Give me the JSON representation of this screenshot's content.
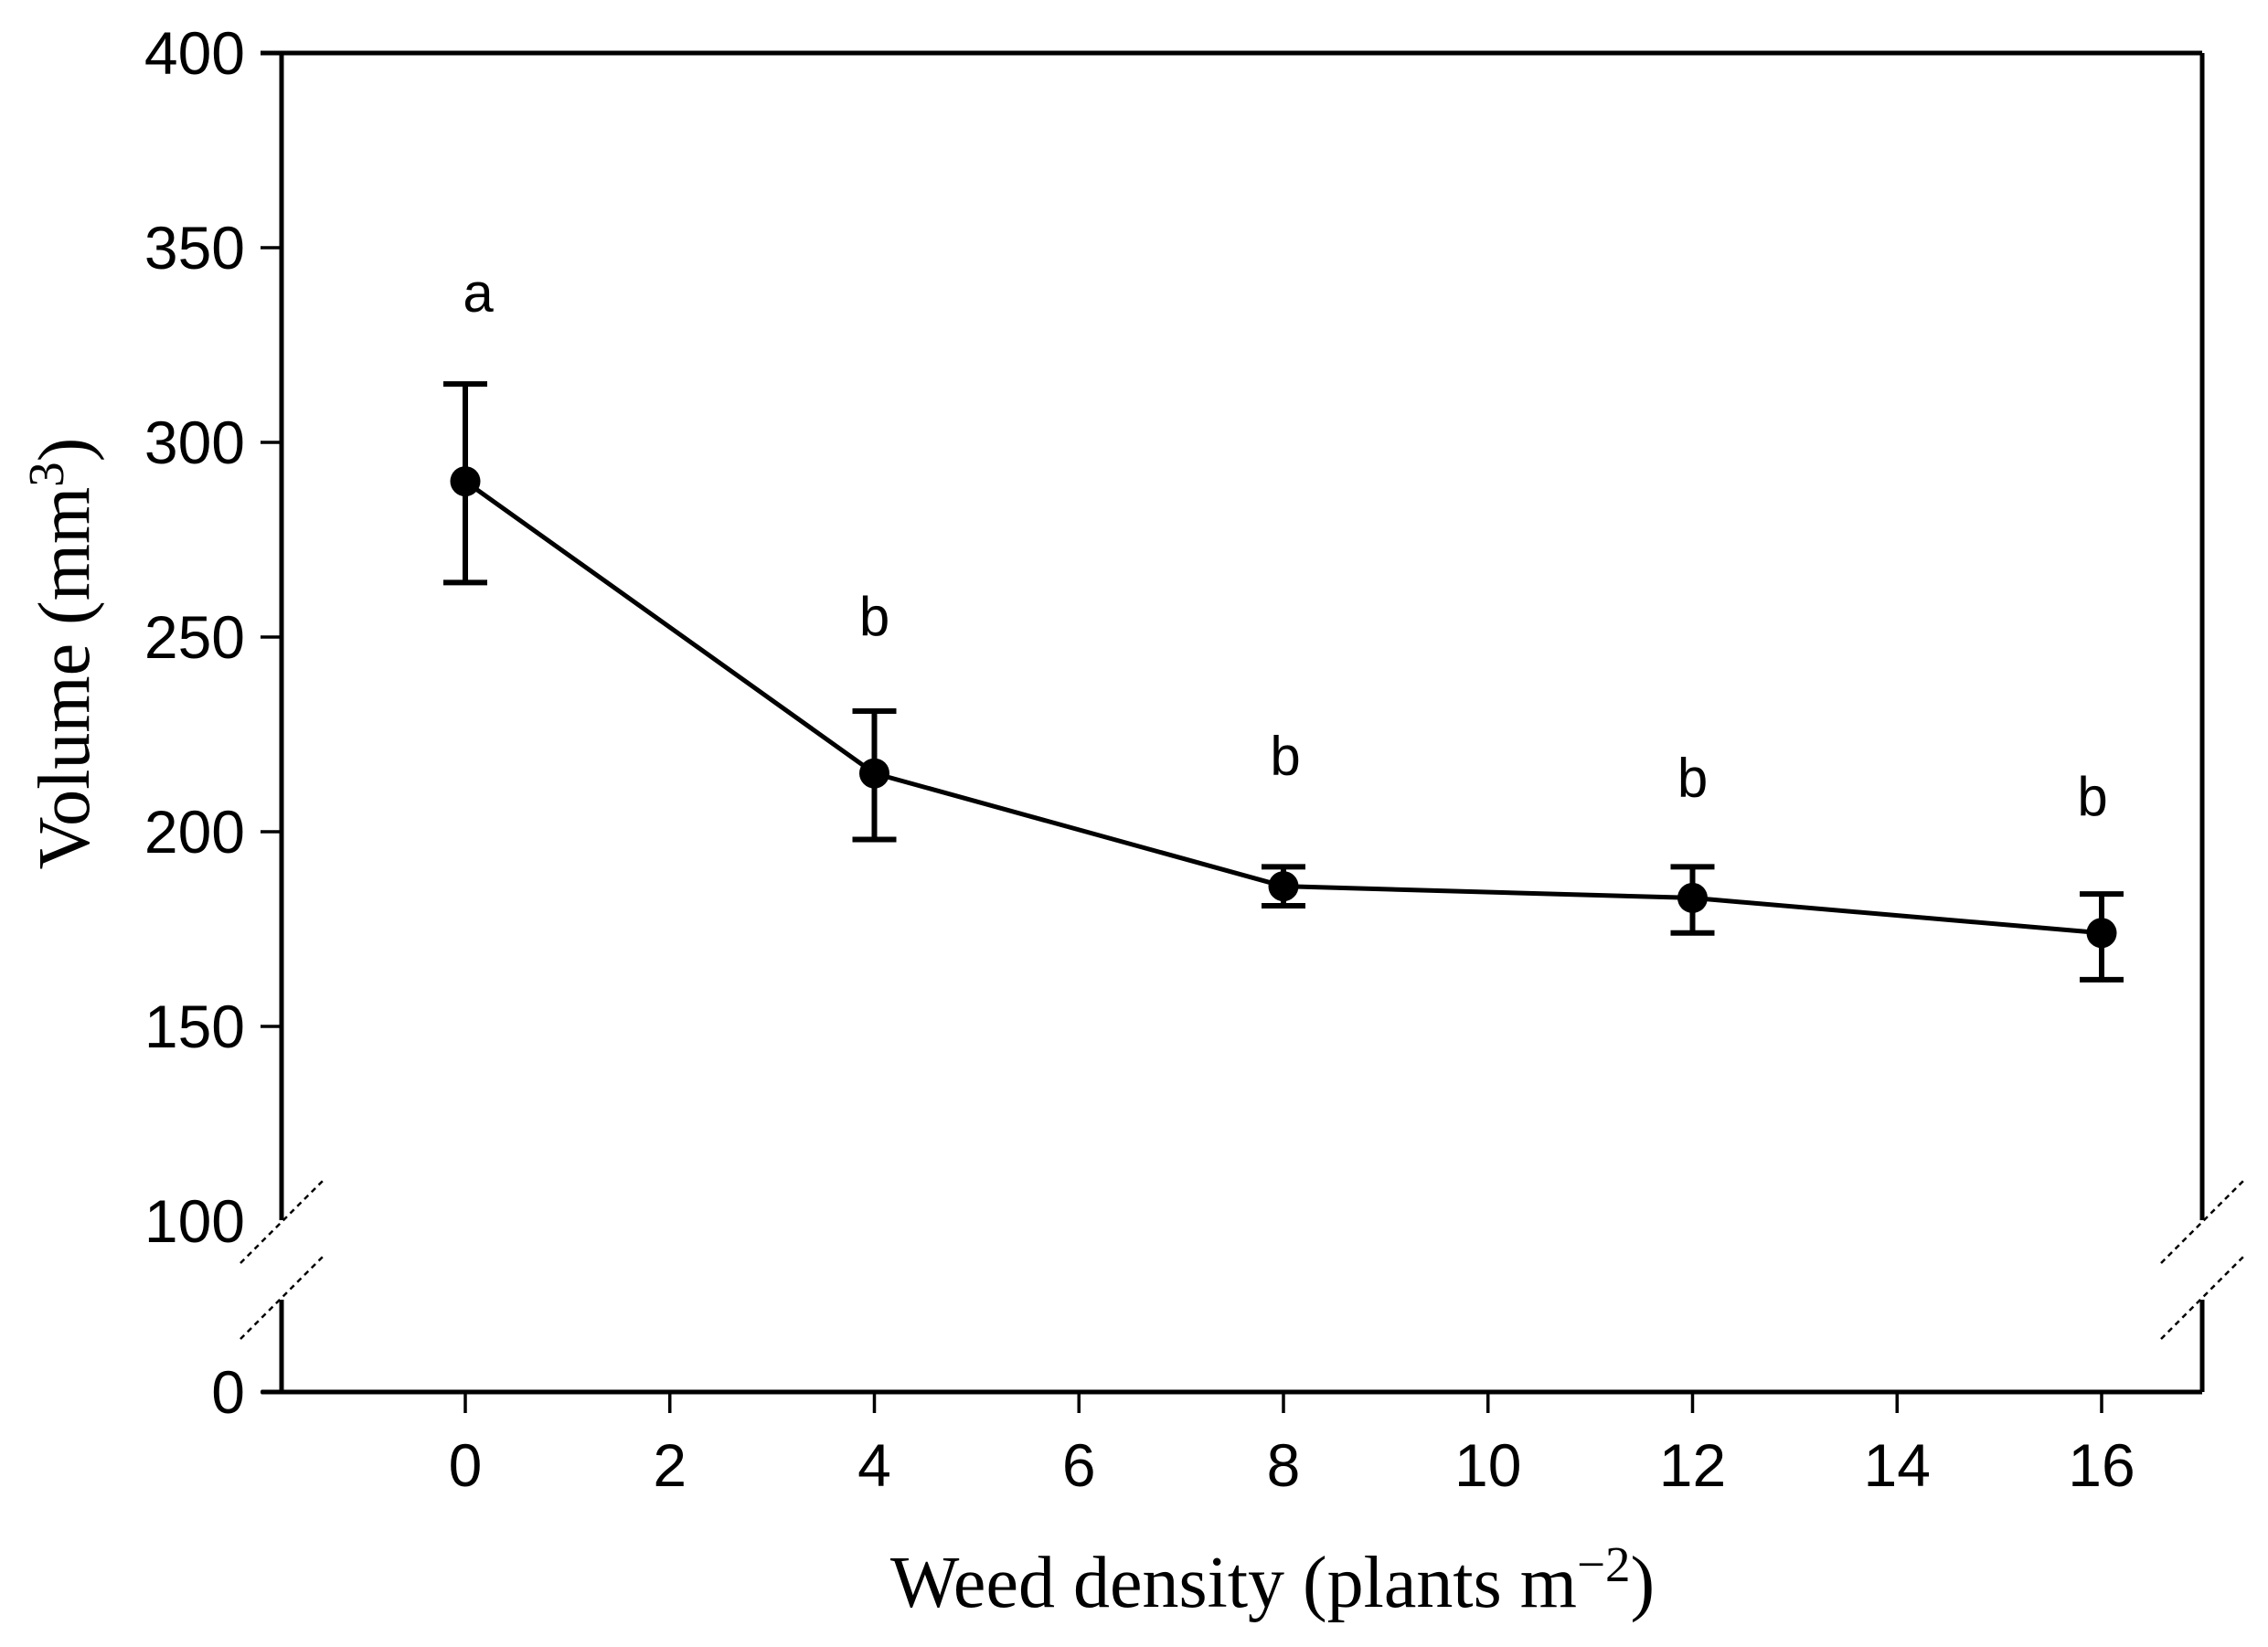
{
  "figure": {
    "background": "#ffffff",
    "ink_color": "#000000"
  },
  "chart_data": {
    "type": "line",
    "title": "",
    "xlabel": "Weed density (plants m⁻²)",
    "ylabel": "Volume (mm³)",
    "x": [
      0,
      4,
      8,
      12,
      16
    ],
    "series": [
      {
        "name": "Volume",
        "means": [
          290,
          215,
          186,
          183,
          174
        ],
        "err_upper": [
          315,
          231,
          191,
          191,
          184
        ],
        "err_lower": [
          264,
          198,
          181,
          174,
          162
        ]
      }
    ],
    "sig_letters": [
      "a",
      "b",
      "b",
      "b",
      "b"
    ],
    "x_ticks": [
      "0",
      "2",
      "4",
      "6",
      "8",
      "10",
      "12",
      "14",
      "16"
    ],
    "x_tick_values": [
      0,
      2,
      4,
      6,
      8,
      10,
      12,
      14,
      16
    ],
    "y_ticks": [
      "400",
      "350",
      "300",
      "250",
      "200",
      "150",
      "100"
    ],
    "y_tick_values": [
      400,
      350,
      300,
      250,
      200,
      150,
      100
    ],
    "y_zero_label": "0",
    "xlim": [
      -1.8,
      17
    ],
    "ylim": [
      100,
      400
    ],
    "y_axis_break": true,
    "grid": false,
    "legend": false,
    "marker": "filled-circle",
    "line_color": "#000000",
    "background": "#ffffff"
  },
  "x_axis": {
    "title_base": "Weed density (plants m",
    "title_sup": "−2",
    "title_close": ")"
  },
  "y_axis": {
    "title_base": "Volume (mm",
    "title_sup": "3",
    "title_close": ")"
  }
}
